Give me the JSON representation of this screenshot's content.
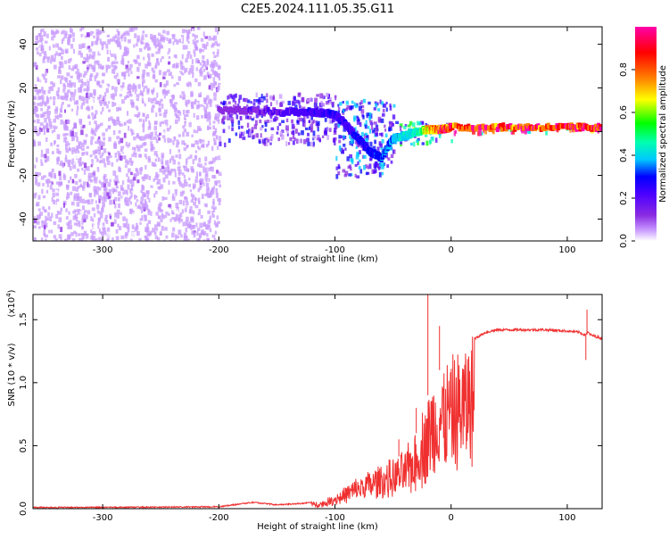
{
  "figure": {
    "title": "C2E5.2024.111.05.35.G11"
  },
  "chart_data": [
    {
      "type": "heatmap",
      "xlabel": "Height of straight line (km)",
      "ylabel": "Frequency (Hz)",
      "xlim": [
        -360,
        130
      ],
      "ylim": [
        -50,
        48
      ],
      "xticks": [
        -300,
        -200,
        -100,
        0,
        100
      ],
      "yticks": [
        -40,
        -20,
        0,
        20,
        40
      ],
      "colorbar": {
        "label": "Normalized spectral amplitude",
        "range": [
          0,
          1
        ],
        "ticks": [
          0.0,
          0.2,
          0.4,
          0.6,
          0.8
        ],
        "colormap": [
          "#ffffff",
          "#c89bff",
          "#8a2be2",
          "#4b00ff",
          "#0000ff",
          "#00c8ff",
          "#00ffb0",
          "#00ff00",
          "#ffff00",
          "#ff8000",
          "#ff0000",
          "#ff00aa"
        ]
      },
      "regions": [
        {
          "x": [
            -360,
            -200
          ],
          "freq": [
            -50,
            48
          ],
          "amplitude": 0.1,
          "description": "broadband noise"
        },
        {
          "x": [
            -200,
            -125
          ],
          "freq": [
            -50,
            48
          ],
          "amplitude": 0.03,
          "description": "faint noise"
        },
        {
          "x": [
            -200,
            -100
          ],
          "freq": [
            -5,
            18
          ],
          "amplitude": 0.25
        },
        {
          "x": [
            -100,
            -50
          ],
          "freq": [
            -20,
            15
          ],
          "amplitude": 0.35
        },
        {
          "x": [
            -50,
            0
          ],
          "freq": [
            -5,
            5
          ],
          "amplitude": 0.5
        },
        {
          "x": [
            0,
            130
          ],
          "freq": [
            0,
            3
          ],
          "amplitude": 0.95
        }
      ],
      "signal_track": {
        "x": [
          -200,
          -150,
          -120,
          -100,
          -90,
          -80,
          -70,
          -60,
          -50,
          -40,
          -30,
          -20,
          -10,
          0,
          50,
          100,
          130
        ],
        "freq": [
          10,
          9,
          9,
          8,
          3,
          -3,
          -9,
          -12,
          -3,
          -2,
          0,
          1,
          1,
          2,
          2,
          2,
          2
        ],
        "amplitude": [
          0.2,
          0.25,
          0.3,
          0.3,
          0.3,
          0.35,
          0.35,
          0.4,
          0.45,
          0.5,
          0.55,
          0.8,
          0.9,
          0.95,
          0.95,
          0.95,
          0.95
        ]
      }
    },
    {
      "type": "line",
      "xlabel": "Height of straight line (km)",
      "ylabel": "SNR (10 * v/v)",
      "yscale_label": "(x10",
      "yscale_exponent": "4",
      "xlim": [
        -360,
        130
      ],
      "ylim": [
        0,
        1.7
      ],
      "xticks": [
        -300,
        -200,
        -100,
        0,
        100
      ],
      "yticks": [
        0.0,
        0.5,
        1.0,
        1.5
      ],
      "series": [
        {
          "color": "#f03030",
          "envelope_x": [
            -360,
            -300,
            -200,
            -180,
            -170,
            -150,
            -130,
            -110,
            -100,
            -90,
            -80,
            -70,
            -60,
            -50,
            -40,
            -30,
            -25,
            -20,
            -15,
            -10,
            -5,
            0,
            10,
            20,
            30,
            40,
            60,
            80,
            100,
            110,
            115,
            118,
            120,
            130
          ],
          "envelope_y": [
            0.01,
            0.01,
            0.015,
            0.04,
            0.05,
            0.03,
            0.04,
            0.06,
            0.12,
            0.18,
            0.25,
            0.3,
            0.35,
            0.38,
            0.45,
            0.6,
            0.75,
            0.9,
            1.0,
            1.1,
            1.15,
            1.15,
            1.25,
            1.35,
            1.4,
            1.42,
            1.42,
            1.42,
            1.41,
            1.4,
            1.38,
            1.4,
            1.38,
            1.35
          ],
          "spikes": [
            {
              "x": -20,
              "y": 1.7
            },
            {
              "x": -10,
              "y": 1.45
            },
            {
              "x": -30,
              "y": 0.8
            },
            {
              "x": -45,
              "y": 0.55
            },
            {
              "x": 117,
              "y": 1.58
            },
            {
              "x": 116,
              "y": 1.18
            }
          ]
        }
      ]
    }
  ]
}
